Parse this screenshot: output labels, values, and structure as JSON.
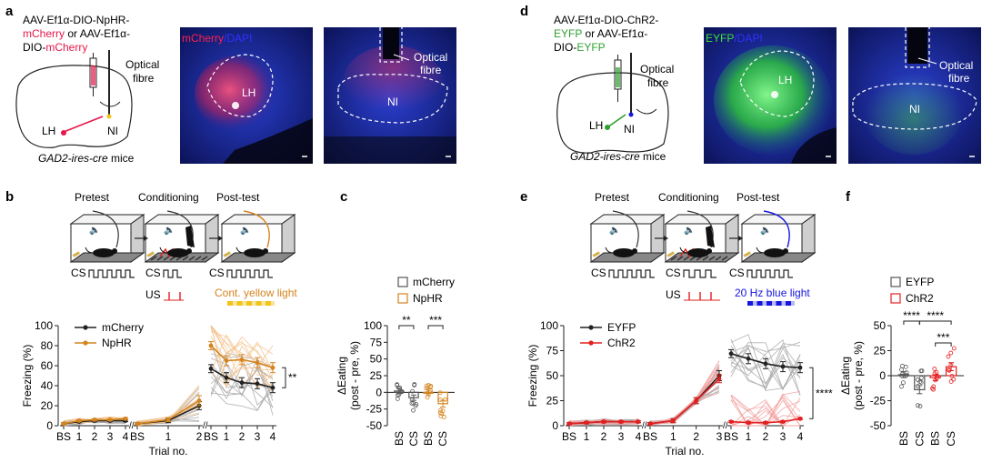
{
  "panel_labels": [
    "a",
    "b",
    "c",
    "d",
    "e",
    "f"
  ],
  "a": {
    "virus_line1": "AAV-Ef1α-DIO-NpHR-",
    "virus_line2a": "mCherry",
    "virus_line2b": " or AAV-Ef1α-",
    "virus_line3a": "DIO-",
    "virus_line3b": "mCherry",
    "optical_fibre": "Optical",
    "optical_fibre2": "fibre",
    "lh": "LH",
    "ni": "NI",
    "mice_ital": "GAD2-ires-cre",
    "mice_rest": " mice",
    "img1_title_a": "mCherry",
    "img1_title_b": "/DAPI",
    "img1_lh": "LH",
    "img2_fibre": "Optical",
    "img2_fibre2": "fibre",
    "img2_ni": "NI"
  },
  "d": {
    "virus_line1": "AAV-Ef1α-DIO-ChR2-",
    "virus_line2a": "EYFP",
    "virus_line2b": " or AAV-Ef1α-",
    "virus_line3a": "DIO-",
    "virus_line3b": "EYFP",
    "optical_fibre": "Optical",
    "optical_fibre2": "fibre",
    "lh": "LH",
    "ni": "NI",
    "mice_ital": "GAD2-ires-cre",
    "mice_rest": " mice",
    "img1_title_a": "EYFP",
    "img1_title_b": "/DAPI",
    "img1_lh": "LH",
    "img2_fibre": "Optical",
    "img2_fibre2": "fibre",
    "img2_ni": "NI"
  },
  "protocol_b": {
    "stage_labels": [
      "Pretest",
      "Conditioning",
      "Post-test"
    ],
    "cs": "CS",
    "us": "US",
    "light": "Cont. yellow light"
  },
  "protocol_e": {
    "stage_labels": [
      "Pretest",
      "Conditioning",
      "Post-test"
    ],
    "cs": "CS",
    "us": "US",
    "light": "20 Hz blue light"
  },
  "colors": {
    "mcherry_red": "#e8174a",
    "eyfp_green": "#2fa02f",
    "npHR_orange": "#d4841f",
    "chr2_red": "#e32020",
    "blue_light": "#1515e0",
    "yellow_light": "#f2c318",
    "grey": "#7f7f7f",
    "dark": "#222222"
  },
  "chart_data": [
    {
      "id": "b",
      "type": "line",
      "ylabel": "Freezing (%)",
      "xlabel": "Trial no.",
      "ylim": [
        0,
        100
      ],
      "yticks": [
        0,
        20,
        40,
        60,
        80,
        100
      ],
      "segments": [
        {
          "name": "pretest",
          "x": [
            "BS",
            "1",
            "2",
            "3",
            "4"
          ]
        },
        {
          "name": "conditioning",
          "x": [
            "BS",
            "1",
            "2"
          ]
        },
        {
          "name": "post-test",
          "x": [
            "BS",
            "1",
            "2",
            "3",
            "4"
          ]
        }
      ],
      "series": [
        {
          "name": "mCherry",
          "color": "#222222",
          "values": [
            [
              2,
              4,
              5,
              5,
              5
            ],
            [
              2,
              5,
              20
            ],
            [
              57,
              48,
              43,
              42,
              38
            ]
          ],
          "err": [
            [
              1,
              1,
              1,
              1,
              1
            ],
            [
              1,
              2,
              4
            ],
            [
              4,
              5,
              5,
              5,
              5
            ]
          ]
        },
        {
          "name": "NpHR",
          "color": "#d4841f",
          "values": [
            [
              2,
              5,
              6,
              6,
              7
            ],
            [
              2,
              6,
              25
            ],
            [
              80,
              65,
              66,
              63,
              58
            ]
          ],
          "err": [
            [
              1,
              1,
              1,
              1,
              1
            ],
            [
              1,
              2,
              5
            ],
            [
              4,
              5,
              5,
              5,
              5
            ]
          ]
        }
      ],
      "significance": "**"
    },
    {
      "id": "c",
      "type": "bar",
      "ylabel_line1": "ΔEating",
      "ylabel_line2": "(post - pre, %)",
      "ylim": [
        -50,
        100
      ],
      "yticks": [
        -50,
        -25,
        0,
        25,
        50,
        75,
        100
      ],
      "categories": [
        "BS",
        "CS",
        "BS",
        "CS"
      ],
      "groups": [
        "mCherry",
        "mCherry",
        "NpHR",
        "NpHR"
      ],
      "values": [
        2,
        -8,
        0,
        -17
      ],
      "err": [
        4,
        4,
        5,
        5
      ],
      "legend": [
        "mCherry",
        "NpHR"
      ],
      "significance": [
        "**",
        "***"
      ]
    },
    {
      "id": "e",
      "type": "line",
      "ylabel": "Freezing (%)",
      "xlabel": "Trial no.",
      "ylim": [
        0,
        100
      ],
      "yticks": [
        0,
        25,
        50,
        75,
        100
      ],
      "segments": [
        {
          "name": "pretest",
          "x": [
            "BS",
            "1",
            "2",
            "3",
            "4"
          ]
        },
        {
          "name": "conditioning",
          "x": [
            "BS",
            "1",
            "2",
            "3"
          ]
        },
        {
          "name": "post-test",
          "x": [
            "BS",
            "1",
            "2",
            "3",
            "4"
          ]
        }
      ],
      "series": [
        {
          "name": "EYFP",
          "color": "#222222",
          "values": [
            [
              2,
              3,
              4,
              4,
              4
            ],
            [
              2,
              5,
              25,
              50
            ],
            [
              72,
              67,
              62,
              59,
              58
            ]
          ],
          "err": [
            [
              1,
              1,
              1,
              1,
              1
            ],
            [
              1,
              2,
              3,
              5
            ],
            [
              4,
              5,
              5,
              5,
              5
            ]
          ]
        },
        {
          "name": "ChR2",
          "color": "#e32020",
          "values": [
            [
              2,
              3,
              4,
              4,
              4
            ],
            [
              2,
              5,
              25,
              47
            ],
            [
              4,
              3,
              3,
              4,
              7
            ]
          ],
          "err": [
            [
              1,
              1,
              1,
              1,
              1
            ],
            [
              1,
              2,
              3,
              4
            ],
            [
              1,
              1,
              1,
              1,
              1
            ]
          ]
        }
      ],
      "significance": "****"
    },
    {
      "id": "f",
      "type": "bar",
      "ylabel_line1": "ΔEating",
      "ylabel_line2": "(post - pre, %)",
      "ylim": [
        -50,
        50
      ],
      "yticks": [
        -50,
        -25,
        0,
        25,
        50
      ],
      "categories": [
        "BS",
        "CS",
        "BS",
        "CS"
      ],
      "groups": [
        "EYFP",
        "EYFP",
        "ChR2",
        "ChR2"
      ],
      "values": [
        1,
        -14,
        -2,
        9
      ],
      "err": [
        3,
        4,
        3,
        4
      ],
      "legend": [
        "EYFP",
        "ChR2"
      ],
      "significance": [
        "****",
        "****",
        "***"
      ]
    }
  ]
}
